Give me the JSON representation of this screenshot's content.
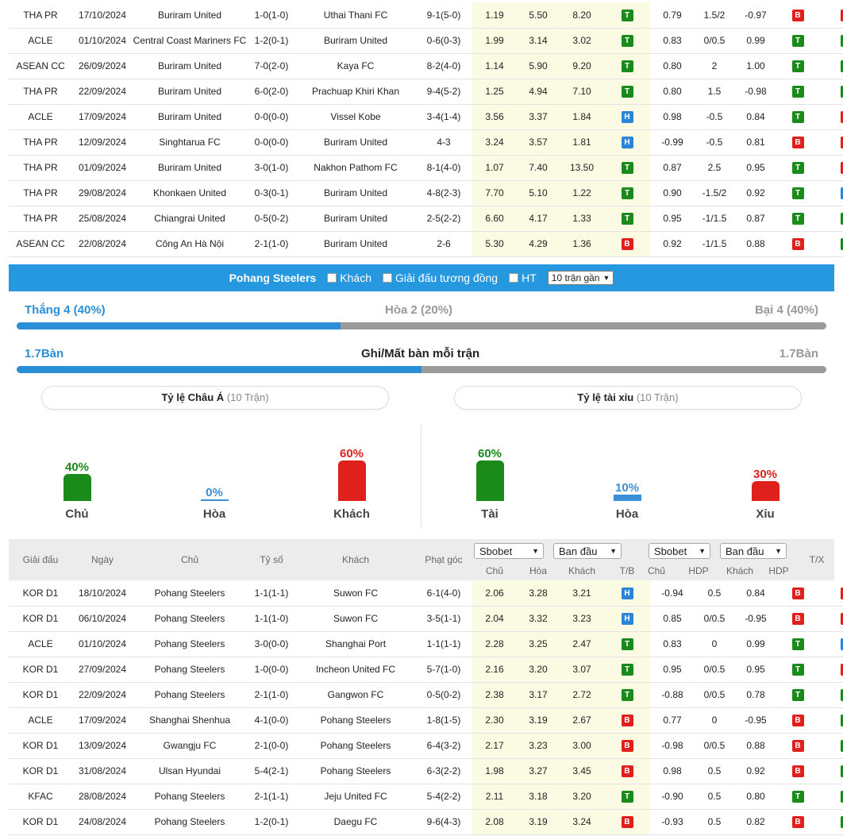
{
  "table1_rows": [
    {
      "league": "THA PR",
      "date": "17/10/2024",
      "home": "Buriram United",
      "home_class": "t-orange",
      "score": "1-0",
      "ht": "(1-0)",
      "away": "Uthai Thani FC",
      "away_class": "",
      "corner": "9-1(5-0)",
      "o1": "1.19",
      "o2": "5.50",
      "o3": "8.20",
      "r1": "T",
      "hc1": "0.79",
      "hc2": "1.5/2",
      "hc3": "-0.97",
      "r2": "B",
      "r3": "X"
    },
    {
      "league": "ACLE",
      "date": "01/10/2024",
      "home": "Central Coast Mariners FC",
      "home_class": "",
      "score": "1-2",
      "ht": "(0-1)",
      "away": "Buriram United",
      "away_class": "t-orange",
      "corner": "0-6(0-3)",
      "o1": "1.99",
      "o2": "3.14",
      "o3": "3.02",
      "r1": "T",
      "hc1": "0.83",
      "hc2": "0/0.5",
      "hc3": "0.99",
      "r2": "T",
      "r3": "T"
    },
    {
      "league": "ASEAN CC",
      "date": "26/09/2024",
      "home": "Buriram United",
      "home_class": "t-orange",
      "score": "7-0",
      "ht": "(2-0)",
      "away": "Kaya FC",
      "away_class": "",
      "corner": "8-2(4-0)",
      "o1": "1.14",
      "o2": "5.90",
      "o3": "9.20",
      "r1": "T",
      "hc1": "0.80",
      "hc2": "2",
      "hc3": "1.00",
      "r2": "T",
      "r3": "T"
    },
    {
      "league": "THA PR",
      "date": "22/09/2024",
      "home": "Buriram United",
      "home_class": "t-orange",
      "score": "6-0",
      "ht": "(2-0)",
      "away": "Prachuap Khiri Khan",
      "away_class": "",
      "corner": "9-4(5-2)",
      "o1": "1.25",
      "o2": "4.94",
      "o3": "7.10",
      "r1": "T",
      "hc1": "0.80",
      "hc2": "1.5",
      "hc3": "-0.98",
      "r2": "T",
      "r3": "T"
    },
    {
      "league": "ACLE",
      "date": "17/09/2024",
      "home": "Buriram United",
      "home_class": "t-orange",
      "score": "0-0",
      "ht": "(0-0)",
      "away": "Vissel Kobe",
      "away_class": "",
      "corner": "3-4(1-4)",
      "o1": "3.56",
      "o2": "3.37",
      "o3": "1.84",
      "r1": "H",
      "hc1": "0.98",
      "hc2": "-0.5",
      "hc3": "0.84",
      "r2": "T",
      "r3": "X"
    },
    {
      "league": "THA PR",
      "date": "12/09/2024",
      "home": "Singhtarua FC",
      "home_class": "",
      "score": "0-0",
      "ht": "(0-0)",
      "away": "Buriram United",
      "away_class": "t-orange",
      "corner": "4-3",
      "o1": "3.24",
      "o2": "3.57",
      "o3": "1.81",
      "r1": "H",
      "hc1": "-0.99",
      "hc2": "-0.5",
      "hc3": "0.81",
      "r2": "B",
      "r3": "X"
    },
    {
      "league": "THA PR",
      "date": "01/09/2024",
      "home": "Buriram United",
      "home_class": "t-orange",
      "score": "3-0",
      "ht": "(1-0)",
      "away": "Nakhon Pathom FC",
      "away_class": "",
      "corner": "8-1(4-0)",
      "o1": "1.07",
      "o2": "7.40",
      "o3": "13.50",
      "r1": "T",
      "hc1": "0.87",
      "hc2": "2.5",
      "hc3": "0.95",
      "r2": "T",
      "r3": "X"
    },
    {
      "league": "THA PR",
      "date": "29/08/2024",
      "home": "Khonkaen United",
      "home_class": "",
      "score": "0-3",
      "ht": "(0-1)",
      "away": "Buriram United",
      "away_class": "t-orange",
      "corner": "4-8(2-3)",
      "o1": "7.70",
      "o2": "5.10",
      "o3": "1.22",
      "r1": "T",
      "hc1": "0.90",
      "hc2": "-1.5/2",
      "hc3": "0.92",
      "r2": "T",
      "r3": "H"
    },
    {
      "league": "THA PR",
      "date": "25/08/2024",
      "home": "Chiangrai United",
      "home_class": "",
      "score": "0-5",
      "ht": "(0-2)",
      "away": "Buriram United",
      "away_class": "t-orange",
      "corner": "2-5(2-2)",
      "o1": "6.60",
      "o2": "4.17",
      "o3": "1.33",
      "r1": "T",
      "hc1": "0.95",
      "hc2": "-1/1.5",
      "hc3": "0.87",
      "r2": "T",
      "r3": "T"
    },
    {
      "league": "ASEAN CC",
      "date": "22/08/2024",
      "home": "Công An Hà Nội",
      "home_class": "",
      "score": "2-1",
      "ht": "(1-0)",
      "away": "Buriram United",
      "away_class": "t-orange",
      "corner": "2-6",
      "o1": "5.30",
      "o2": "4.29",
      "o3": "1.36",
      "r1": "B",
      "hc1": "0.92",
      "hc2": "-1/1.5",
      "hc3": "0.88",
      "r2": "B",
      "r3": "T"
    }
  ],
  "filter": {
    "team": "Pohang Steelers",
    "opt_away": "Khách",
    "opt_same_league": "Giải đấu tương đồng",
    "opt_ht": "HT",
    "recent_select": "10 trận gần"
  },
  "summary": {
    "win": "Thắng 4 (40%)",
    "draw": "Hòa 2 (20%)",
    "loss": "Bại 4 (40%)",
    "win_fraction": 0.4,
    "goals_left": "1.7Bàn",
    "goals_title": "Ghi/Mất bàn mỗi trận",
    "goals_right": "1.7Bàn",
    "goals_fraction": 0.5
  },
  "asian_panel": {
    "title": "Tỷ lệ Châu Á",
    "sub": "(10 Trận)",
    "bars": [
      {
        "pct": "40%",
        "label": "Chủ",
        "value": 0.4
      },
      {
        "pct": "0%",
        "label": "Hòa",
        "value": 0.0
      },
      {
        "pct": "60%",
        "label": "Khách",
        "value": 0.6
      }
    ]
  },
  "ou_panel": {
    "title": "Tỷ lệ tài xỉu",
    "sub": "(10 Trận)",
    "bars": [
      {
        "pct": "60%",
        "label": "Tài",
        "value": 0.6
      },
      {
        "pct": "10%",
        "label": "Hòa",
        "value": 0.1
      },
      {
        "pct": "30%",
        "label": "Xỉu",
        "value": 0.3
      }
    ]
  },
  "table2_header": {
    "league": "Giải đấu",
    "date": "Ngày",
    "home": "Chủ",
    "score": "Tỷ số",
    "away": "Khách",
    "corner": "Phạt góc",
    "dd1": "Sbobet",
    "dd2": "Ban đầu",
    "dd3": "Sbobet",
    "dd4": "Ban đầu",
    "s_home": "Chủ",
    "s_draw": "Hòa",
    "s_away": "Khách",
    "s_tb": "T/B",
    "s_home2": "Chủ",
    "s_hdp": "HDP",
    "s_away2": "Khách",
    "s_hdp2": "HDP",
    "tx": "T/X"
  },
  "table2_rows": [
    {
      "league": "KOR D1",
      "date": "18/10/2024",
      "home": "Pohang Steelers",
      "home_class": "t-home",
      "score": "1-1",
      "ht": "(1-1)",
      "away": "Suwon FC",
      "away_class": "",
      "corner": "6-1(4-0)",
      "o1": "2.06",
      "o2": "3.28",
      "o3": "3.21",
      "r1": "H",
      "hc1": "-0.94",
      "hc2": "0.5",
      "hc3": "0.84",
      "r2": "B",
      "r3": "X"
    },
    {
      "league": "KOR D1",
      "date": "06/10/2024",
      "home": "Pohang Steelers",
      "home_class": "t-home",
      "score": "1-1",
      "ht": "(1-0)",
      "away": "Suwon FC",
      "away_class": "",
      "corner": "3-5(1-1)",
      "o1": "2.04",
      "o2": "3.32",
      "o3": "3.23",
      "r1": "H",
      "hc1": "0.85",
      "hc2": "0/0.5",
      "hc3": "-0.95",
      "r2": "B",
      "r3": "X"
    },
    {
      "league": "ACLE",
      "date": "01/10/2024",
      "home": "Pohang Steelers",
      "home_class": "t-home",
      "score": "3-0",
      "ht": "(0-0)",
      "away": "Shanghai Port",
      "away_class": "",
      "corner": "1-1(1-1)",
      "o1": "2.28",
      "o2": "3.25",
      "o3": "2.47",
      "r1": "T",
      "hc1": "0.83",
      "hc2": "0",
      "hc3": "0.99",
      "r2": "T",
      "r3": "H"
    },
    {
      "league": "KOR D1",
      "date": "27/09/2024",
      "home": "Pohang Steelers",
      "home_class": "t-home",
      "score": "1-0",
      "ht": "(0-0)",
      "away": "Incheon United FC",
      "away_class": "",
      "corner": "5-7(1-0)",
      "o1": "2.16",
      "o2": "3.20",
      "o3": "3.07",
      "r1": "T",
      "hc1": "0.95",
      "hc2": "0/0.5",
      "hc3": "0.95",
      "r2": "T",
      "r3": "X"
    },
    {
      "league": "KOR D1",
      "date": "22/09/2024",
      "home": "Pohang Steelers",
      "home_class": "t-home",
      "score": "2-1",
      "ht": "(1-0)",
      "away": "Gangwon FC",
      "away_class": "",
      "corner": "0-5(0-2)",
      "o1": "2.38",
      "o2": "3.17",
      "o3": "2.72",
      "r1": "T",
      "hc1": "-0.88",
      "hc2": "0/0.5",
      "hc3": "0.78",
      "r2": "T",
      "r3": "T"
    },
    {
      "league": "ACLE",
      "date": "17/09/2024",
      "home": "Shanghai Shenhua",
      "home_class": "",
      "score": "4-1",
      "ht": "(0-0)",
      "away": "Pohang Steelers",
      "away_class": "t-home",
      "corner": "1-8(1-5)",
      "o1": "2.30",
      "o2": "3.19",
      "o3": "2.67",
      "r1": "B",
      "hc1": "0.77",
      "hc2": "0",
      "hc3": "-0.95",
      "r2": "B",
      "r3": "T"
    },
    {
      "league": "KOR D1",
      "date": "13/09/2024",
      "home": "Gwangju FC",
      "home_class": "",
      "score": "2-1",
      "ht": "(0-0)",
      "away": "Pohang Steelers",
      "away_class": "t-home",
      "corner": "6-4(3-2)",
      "o1": "2.17",
      "o2": "3.23",
      "o3": "3.00",
      "r1": "B",
      "hc1": "-0.98",
      "hc2": "0/0.5",
      "hc3": "0.88",
      "r2": "B",
      "r3": "T"
    },
    {
      "league": "KOR D1",
      "date": "31/08/2024",
      "home": "Ulsan Hyundai",
      "home_class": "",
      "score": "5-4",
      "ht": "(2-1)",
      "away": "Pohang Steelers",
      "away_class": "t-home",
      "corner": "6-3(2-2)",
      "o1": "1.98",
      "o2": "3.27",
      "o3": "3.45",
      "r1": "B",
      "hc1": "0.98",
      "hc2": "0.5",
      "hc3": "0.92",
      "r2": "B",
      "r3": "T"
    },
    {
      "league": "KFAC",
      "date": "28/08/2024",
      "home": "Pohang Steelers",
      "home_class": "t-home",
      "score": "2-1",
      "ht": "(1-1)",
      "away": "Jeju United FC",
      "away_class": "",
      "corner": "5-4(2-2)",
      "o1": "2.11",
      "o2": "3.18",
      "o3": "3.20",
      "r1": "T",
      "hc1": "-0.90",
      "hc2": "0.5",
      "hc3": "0.80",
      "r2": "T",
      "r3": "T"
    },
    {
      "league": "KOR D1",
      "date": "24/08/2024",
      "home": "Pohang Steelers",
      "home_class": "t-home",
      "score": "1-2",
      "ht": "(0-1)",
      "away": "Daegu FC",
      "away_class": "",
      "corner": "9-6(4-3)",
      "o1": "2.08",
      "o2": "3.19",
      "o3": "3.24",
      "r1": "B",
      "hc1": "-0.93",
      "hc2": "0.5",
      "hc3": "0.82",
      "r2": "B",
      "r3": "T"
    }
  ],
  "colors": {
    "filter_bar": "#2698e0",
    "win_blue": "#2b8fd8",
    "result_T": "#1a8a1a",
    "result_B": "#e0201d",
    "result_H": "#2b85d6",
    "odds_bg": "#fbfbe3"
  }
}
